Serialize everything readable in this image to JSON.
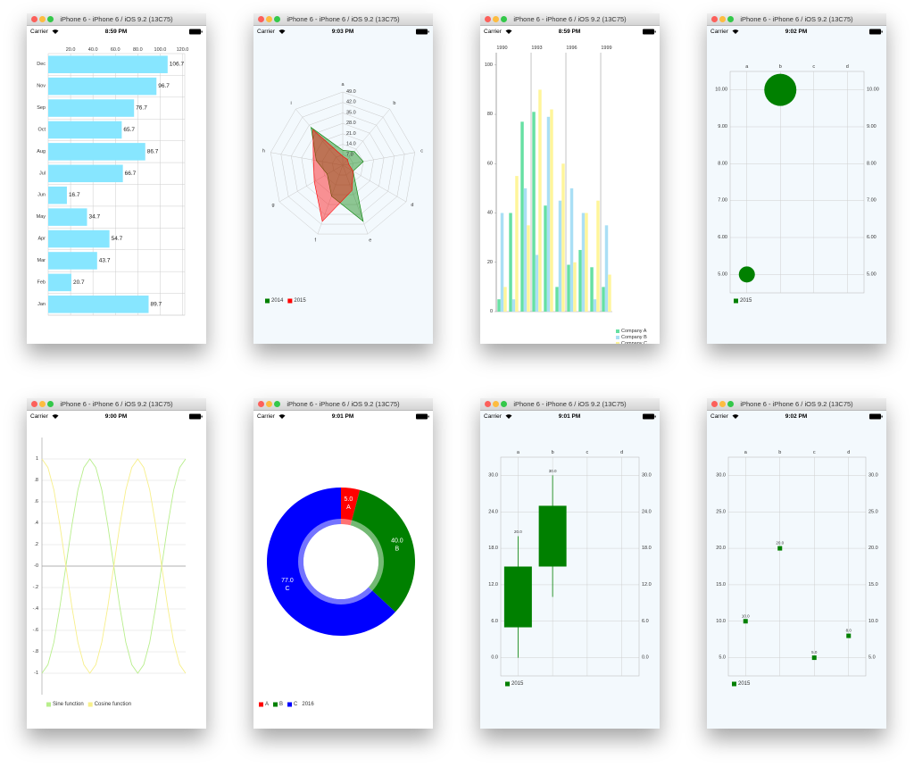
{
  "windows": [
    {
      "title": "iPhone 6 - iPhone 6 / iOS 9.2 (13C75)",
      "carrier": "Carrier",
      "time": "8:59 PM"
    },
    {
      "title": "iPhone 6 - iPhone 6 / iOS 9.2 (13C75)",
      "carrier": "Carrier",
      "time": "9:03 PM"
    },
    {
      "title": "iPhone 6 - iPhone 6 / iOS 9.2 (13C75)",
      "carrier": "Carrier",
      "time": "8:59 PM"
    },
    {
      "title": "iPhone 6 - iPhone 6 / iOS 9.2 (13C75)",
      "carrier": "Carrier",
      "time": "9:02 PM"
    },
    {
      "title": "iPhone 6 - iPhone 6 / iOS 9.2 (13C75)",
      "carrier": "Carrier",
      "time": "9:00 PM"
    },
    {
      "title": "iPhone 6 - iPhone 6 / iOS 9.2 (13C75)",
      "carrier": "Carrier",
      "time": "9:01 PM"
    },
    {
      "title": "iPhone 6 - iPhone 6 / iOS 9.2 (13C75)",
      "carrier": "Carrier",
      "time": "9:01 PM"
    },
    {
      "title": "iPhone 6 - iPhone 6 / iOS 9.2 (13C75)",
      "carrier": "Carrier",
      "time": "9:02 PM"
    }
  ],
  "chart_data": [
    {
      "type": "hbar",
      "categories": [
        "Jan",
        "Feb",
        "Mar",
        "Apr",
        "May",
        "Jun",
        "Jul",
        "Aug",
        "Oct",
        "Sep",
        "Nov",
        "Dec"
      ],
      "values": [
        89.7,
        20.7,
        43.7,
        54.7,
        34.7,
        16.7,
        66.7,
        86.7,
        65.7,
        76.7,
        96.7,
        106.7
      ],
      "color": "#87e6ff",
      "xlim": [
        0,
        122
      ],
      "xticks": [
        {
          "value": 20,
          "label": "20.0"
        },
        {
          "value": 40,
          "label": "40.0"
        },
        {
          "value": 60,
          "label": "60.0"
        },
        {
          "value": 80,
          "label": "80.0"
        },
        {
          "value": 100,
          "label": "100.0"
        },
        {
          "value": 120,
          "label": "120.0"
        }
      ],
      "grid": true
    },
    {
      "type": "radar",
      "categories": [
        "a",
        "b",
        "c",
        "d",
        "e",
        "f",
        "g",
        "h",
        "i"
      ],
      "rlim": [
        0,
        49
      ],
      "rticks": [
        {
          "value": 7,
          "label": "7.0"
        },
        {
          "value": 14,
          "label": "14.0"
        },
        {
          "value": 21,
          "label": "21.0"
        },
        {
          "value": 28,
          "label": "28.0"
        },
        {
          "value": 35,
          "label": "35.0"
        },
        {
          "value": 42,
          "label": "42.0"
        },
        {
          "value": 49,
          "label": "49.0"
        }
      ],
      "series": [
        {
          "name": "2014",
          "color": "#008000",
          "values": [
            10,
            12,
            14,
            8,
            40,
            22,
            12,
            18,
            33
          ]
        },
        {
          "name": "2015",
          "color": "#ff0000",
          "values": [
            6,
            5,
            4,
            8,
            18,
            40,
            22,
            20,
            31
          ]
        }
      ],
      "legend": "bottom-left"
    },
    {
      "type": "column",
      "categories": [
        "1990",
        null,
        null,
        "1993",
        null,
        null,
        "1996",
        null,
        null,
        "1999"
      ],
      "series": [
        {
          "name": "Company A",
          "color": "#66e0a3",
          "values": [
            5,
            40,
            77,
            81,
            43,
            10,
            19,
            25,
            18,
            10
          ]
        },
        {
          "name": "Company B",
          "color": "#aadff5",
          "values": [
            40,
            5,
            50,
            23,
            79,
            45,
            50,
            40,
            5,
            35
          ]
        },
        {
          "name": "Company C",
          "color": "#fff59a",
          "values": [
            10,
            55,
            35,
            90,
            82,
            60,
            20,
            40,
            45,
            15
          ]
        }
      ],
      "ylim": [
        0,
        105
      ],
      "yticks": [
        0,
        20,
        40,
        60,
        80,
        100
      ],
      "grid": false,
      "legend": "top-right"
    },
    {
      "type": "bubble",
      "categories": [
        "a",
        "b",
        "c",
        "d"
      ],
      "series": [
        {
          "name": "2015",
          "color": "#008000",
          "values": [
            5,
            10,
            null,
            null
          ],
          "sizes": [
            4,
            16,
            null,
            null
          ]
        }
      ],
      "ylim": [
        4.5,
        10.5
      ],
      "yticks": [
        {
          "value": 5,
          "label": "5.00"
        },
        {
          "value": 6,
          "label": "6.00"
        },
        {
          "value": 7,
          "label": "7.00"
        },
        {
          "value": 8,
          "label": "8.00"
        },
        {
          "value": 9,
          "label": "9.00"
        },
        {
          "value": 10,
          "label": "10.00"
        }
      ],
      "grid": true,
      "mirror": true,
      "legend": "bottom-left"
    },
    {
      "type": "line",
      "series": [
        {
          "name": "Sine function",
          "color": "#b8ee8c",
          "values": [
            -1,
            -0.92,
            -0.71,
            -0.38,
            0,
            0.38,
            0.71,
            0.92,
            1,
            0.92,
            0.71,
            0.38,
            0,
            -0.38,
            -0.71,
            -0.92,
            -1,
            -0.92,
            -0.71,
            -0.38,
            0,
            0.38,
            0.71,
            0.92,
            1
          ]
        },
        {
          "name": "Cosine function",
          "color": "#f7ef8a",
          "values": [
            1,
            0.92,
            0.71,
            0.38,
            0,
            -0.38,
            -0.71,
            -0.92,
            -1,
            -0.92,
            -0.71,
            -0.38,
            0,
            0.38,
            0.71,
            0.92,
            1,
            0.92,
            0.71,
            0.38,
            0,
            -0.38,
            -0.71,
            -0.92,
            -1
          ]
        }
      ],
      "ylim": [
        -1.2,
        1.2
      ],
      "yticks": [
        1,
        {
          "value": 0.8,
          "label": ".8"
        },
        {
          "value": 0.6,
          "label": ".6"
        },
        {
          "value": 0.4,
          "label": ".4"
        },
        {
          "value": 0.2,
          "label": ".2"
        },
        {
          "value": 0,
          "label": "-0"
        },
        {
          "value": -0.2,
          "label": "-.2"
        },
        {
          "value": -0.4,
          "label": "-.4"
        },
        {
          "value": -0.6,
          "label": "-.6"
        },
        {
          "value": -0.8,
          "label": "-.8"
        },
        -1
      ],
      "grid": true,
      "legend": "bottom-left"
    },
    {
      "type": "donut",
      "name": "2016",
      "categories": [
        "A",
        "B",
        "C"
      ],
      "values": [
        5,
        40,
        77
      ],
      "value_labels": [
        "5.0",
        "40.0",
        "77.0"
      ],
      "colors": [
        "#ff0000",
        "#008000",
        "#0000ff"
      ],
      "legend": "bottom-left"
    },
    {
      "type": "candlestick",
      "categories": [
        "a",
        "b",
        "c",
        "d"
      ],
      "series": [
        {
          "name": "2015",
          "color": "#008000",
          "open": [
            5,
            15,
            null,
            null
          ],
          "close": [
            15,
            25,
            null,
            null
          ],
          "high": [
            20,
            30,
            null,
            null
          ],
          "low": [
            0,
            10,
            null,
            null
          ],
          "value_labels": [
            "20.0",
            "30.0",
            null,
            null
          ]
        }
      ],
      "ylim": [
        -3,
        33
      ],
      "yticks": [
        {
          "value": 0,
          "label": "0.0"
        },
        {
          "value": 6,
          "label": "6.0"
        },
        {
          "value": 12,
          "label": "12.0"
        },
        {
          "value": 18,
          "label": "18.0"
        },
        {
          "value": 24,
          "label": "24.0"
        },
        {
          "value": 30,
          "label": "30.0"
        }
      ],
      "grid": true,
      "mirror": true,
      "legend": "bottom-left"
    },
    {
      "type": "scatter",
      "categories": [
        "a",
        "b",
        "c",
        "d"
      ],
      "series": [
        {
          "name": "2015",
          "color": "#008000",
          "values": [
            10,
            20,
            5,
            8
          ],
          "value_labels": [
            "10.0",
            "20.0",
            "5.0",
            "8.0"
          ]
        }
      ],
      "ylim": [
        2.5,
        32.5
      ],
      "yticks": [
        {
          "value": 5,
          "label": "5.0"
        },
        {
          "value": 10,
          "label": "10.0"
        },
        {
          "value": 15,
          "label": "15.0"
        },
        {
          "value": 20,
          "label": "20.0"
        },
        {
          "value": 25,
          "label": "25.0"
        },
        {
          "value": 30,
          "label": "30.0"
        }
      ],
      "grid": true,
      "mirror": true,
      "legend": "bottom-left"
    }
  ]
}
